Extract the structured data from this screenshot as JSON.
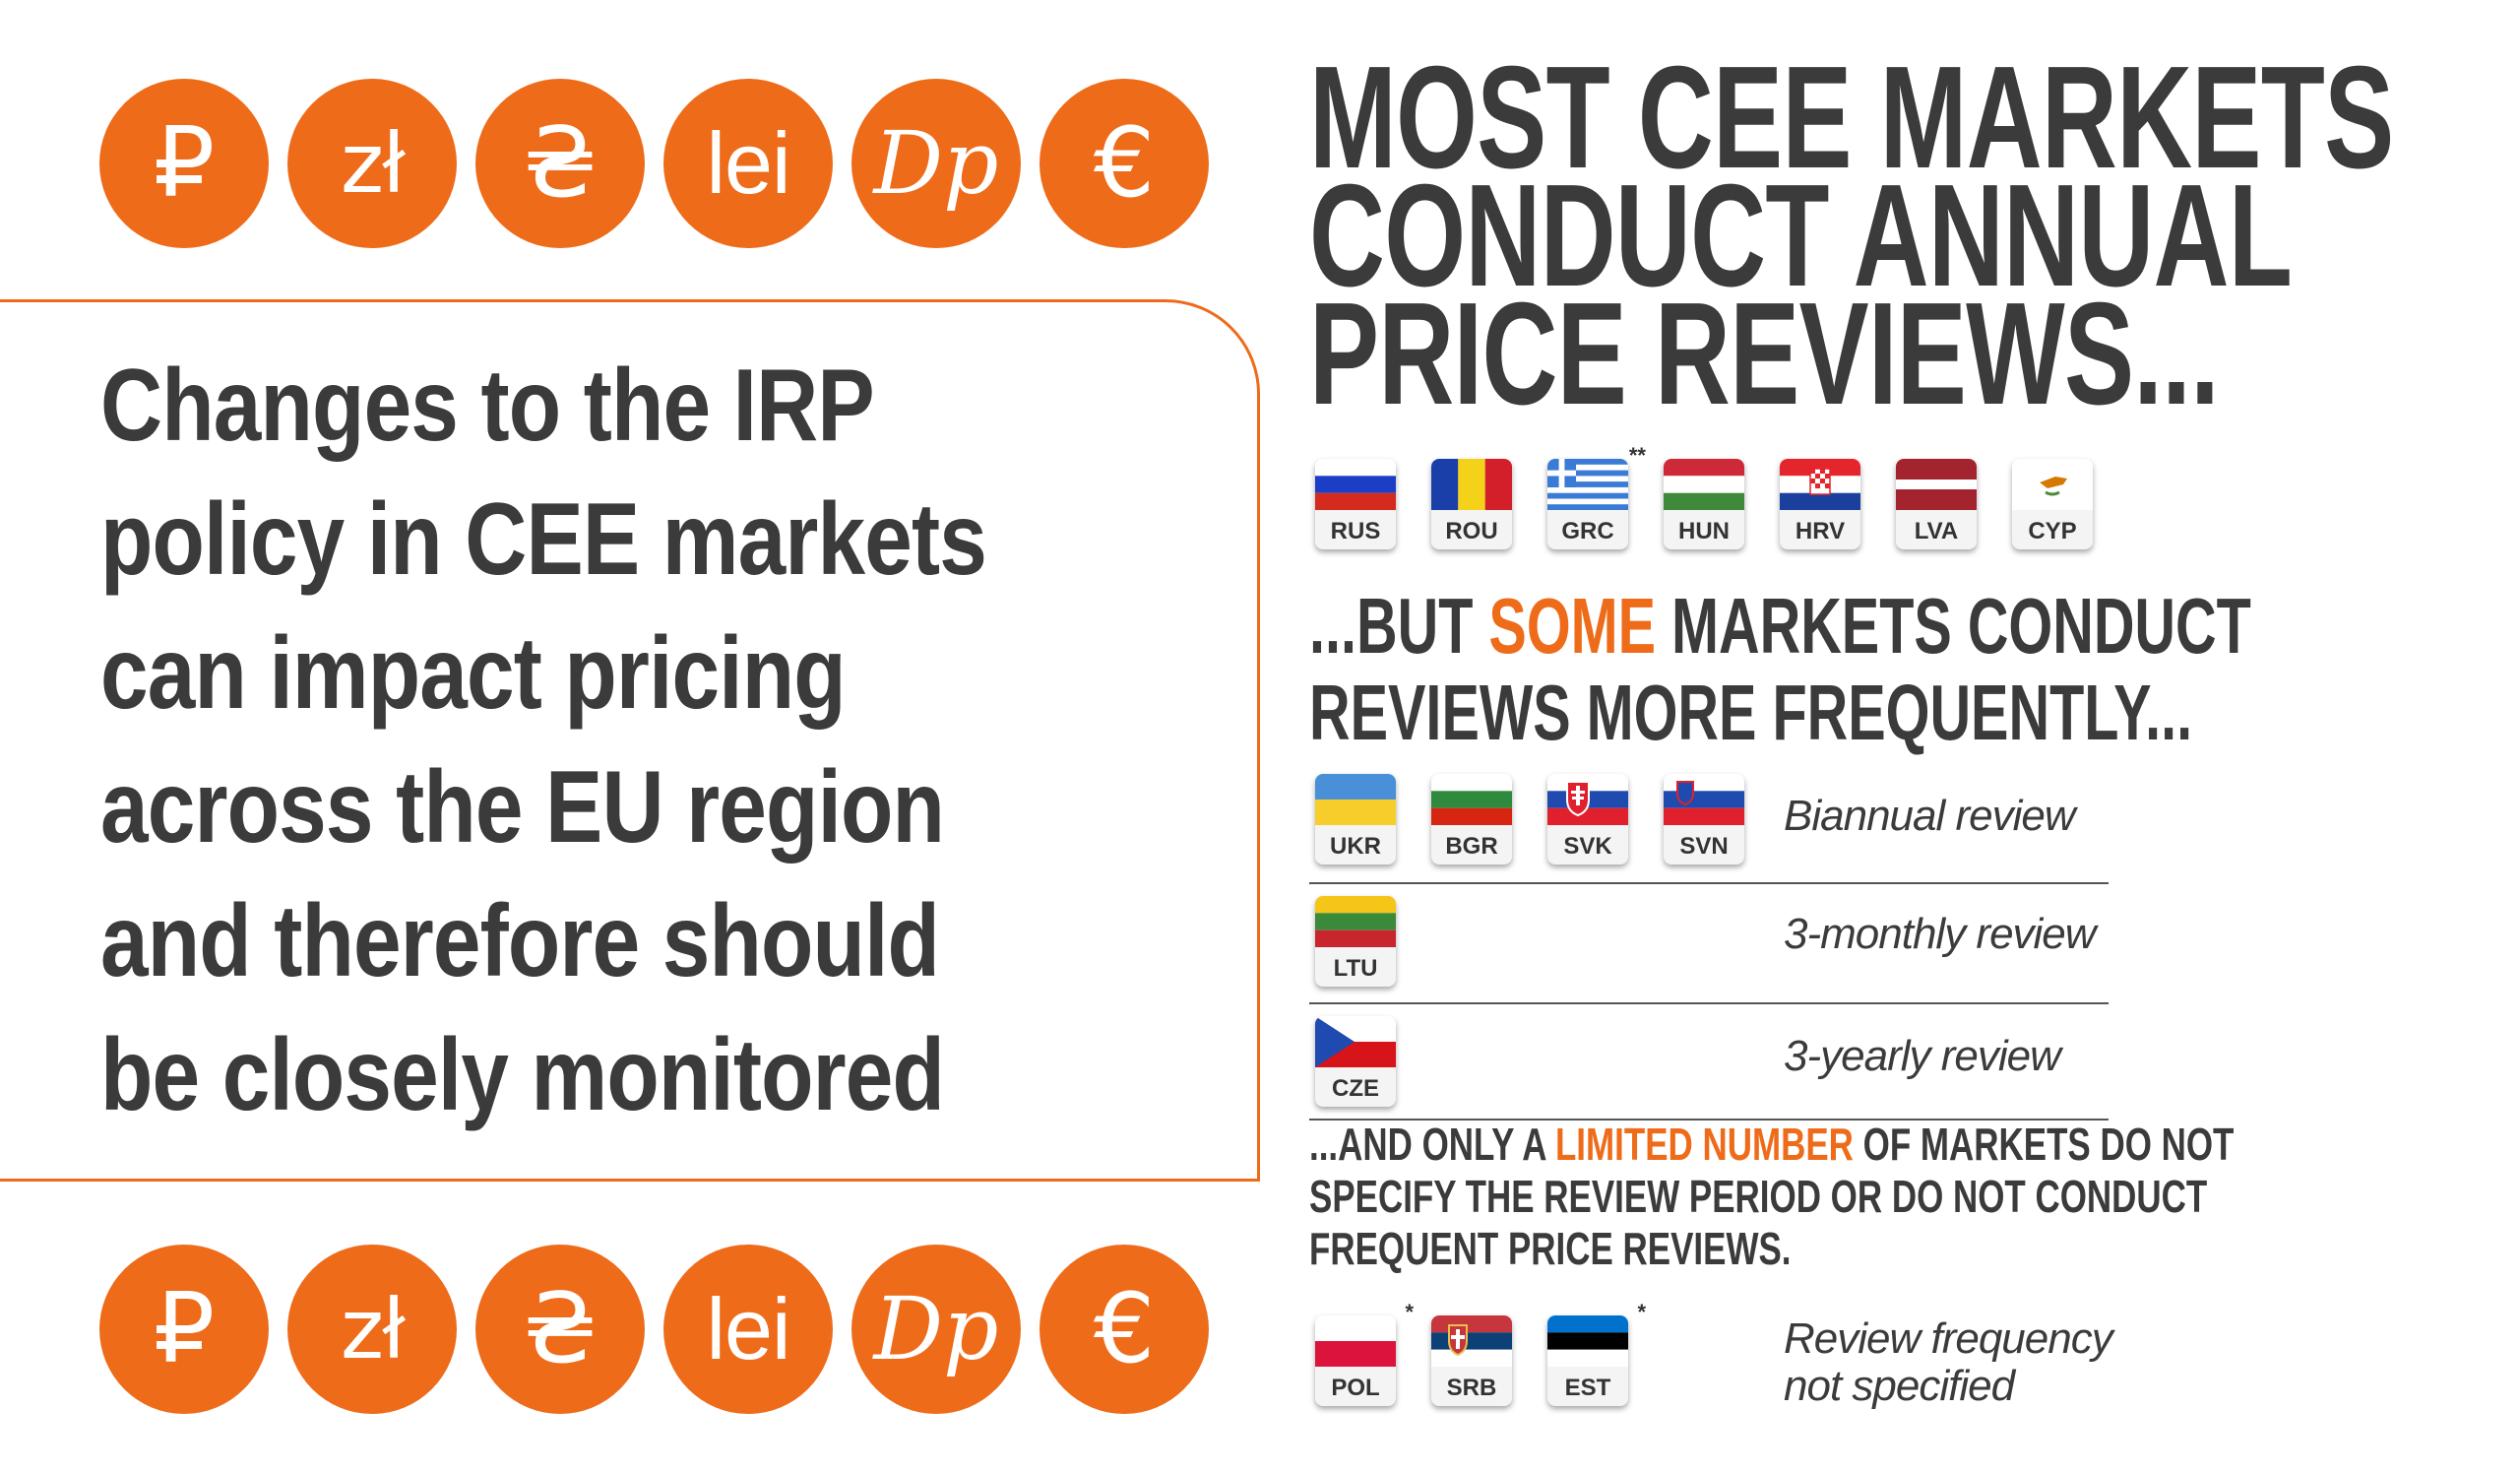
{
  "currency_symbols": [
    "₽",
    "zł",
    "₴",
    "lei",
    "Dp",
    "€"
  ],
  "left_message": "Changes to the IRP policy in CEE markets can impact pricing across the EU region and therefore should be closely monitored",
  "headline": {
    "line1": "MOST CEE MARKETS",
    "line2": "CONDUCT ANNUAL",
    "line3": "PRICE REVIEWS..."
  },
  "annual_flags": [
    {
      "code": "RUS",
      "note": ""
    },
    {
      "code": "ROU",
      "note": ""
    },
    {
      "code": "GRC",
      "note": "**"
    },
    {
      "code": "HUN",
      "note": ""
    },
    {
      "code": "HRV",
      "note": ""
    },
    {
      "code": "LVA",
      "note": ""
    },
    {
      "code": "CYP",
      "note": ""
    }
  ],
  "subheading1": {
    "pre": "...BUT ",
    "highlight": "SOME",
    "post": " MARKETS CONDUCT",
    "line2": "REVIEWS MORE FREQUENTLY..."
  },
  "frequent_groups": [
    {
      "flags": [
        "UKR",
        "BGR",
        "SVK",
        "SVN"
      ],
      "label": "Biannual review"
    },
    {
      "flags": [
        "LTU"
      ],
      "label": "3-monthly review"
    },
    {
      "flags": [
        "CZE"
      ],
      "label": "3-yearly review"
    }
  ],
  "subheading2": {
    "pre": "...AND ONLY A ",
    "highlight": "LIMITED NUMBER",
    "post": " OF MARKETS DO NOT",
    "line2": "SPECIFY THE REVIEW PERIOD OR DO NOT CONDUCT",
    "line3": "FREQUENT PRICE REVIEWS."
  },
  "unspecified_flags": [
    {
      "code": "POL",
      "note": "*"
    },
    {
      "code": "SRB",
      "note": ""
    },
    {
      "code": "EST",
      "note": "*"
    }
  ],
  "unspecified_label": {
    "line1": "Review frequency",
    "line2": "not specified"
  },
  "colors": {
    "accent": "#ee6b1a",
    "text": "#3b3b3b"
  }
}
